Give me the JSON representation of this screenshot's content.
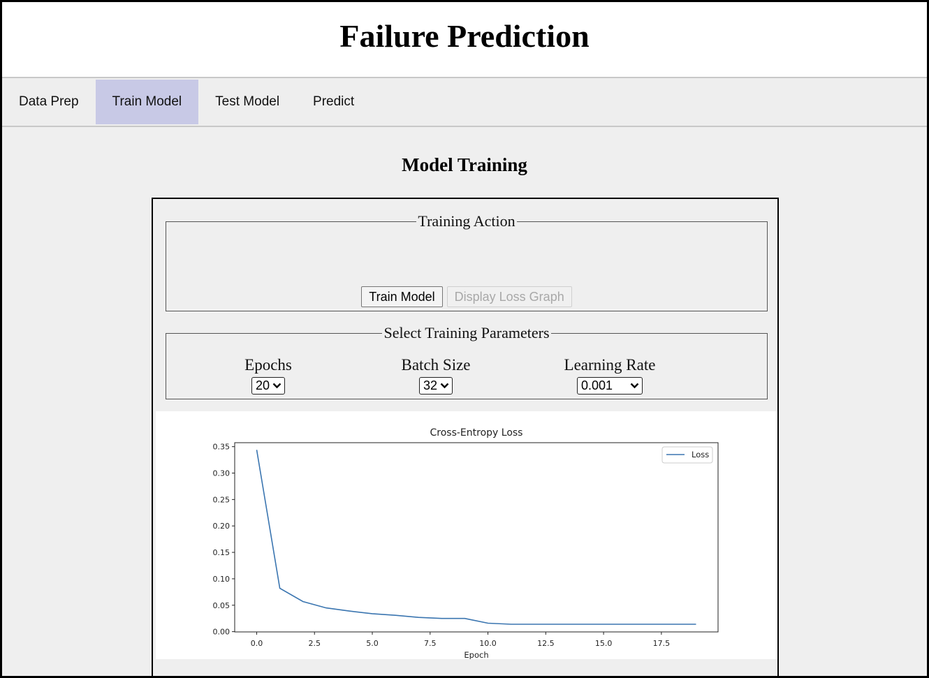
{
  "app": {
    "title": "Failure Prediction"
  },
  "tabs": [
    {
      "label": "Data Prep",
      "active": false
    },
    {
      "label": "Train Model",
      "active": true
    },
    {
      "label": "Test Model",
      "active": false
    },
    {
      "label": "Predict",
      "active": false
    }
  ],
  "section": {
    "title": "Model Training"
  },
  "training_action": {
    "legend": "Training Action",
    "train_button": "Train Model",
    "display_button": "Display Loss Graph"
  },
  "params": {
    "legend": "Select Training Parameters",
    "epochs": {
      "label": "Epochs",
      "value": "20"
    },
    "batch_size": {
      "label": "Batch Size",
      "value": "32"
    },
    "learning_rate": {
      "label": "Learning Rate",
      "value": "0.001"
    }
  },
  "colors": {
    "active_tab": "#c8c9e6",
    "series": "#3a75b0"
  },
  "chart_data": {
    "type": "line",
    "title": "Cross-Entropy Loss",
    "xlabel": "Epoch",
    "ylabel": "",
    "xlim": [
      -0.95,
      19.95
    ],
    "ylim": [
      -0.0005,
      0.3575
    ],
    "xticks": [
      0.0,
      2.5,
      5.0,
      7.5,
      10.0,
      12.5,
      15.0,
      17.5
    ],
    "xtick_labels": [
      "0.0",
      "2.5",
      "5.0",
      "7.5",
      "10.0",
      "12.5",
      "15.0",
      "17.5"
    ],
    "yticks": [
      0.0,
      0.05,
      0.1,
      0.15,
      0.2,
      0.25,
      0.3,
      0.35
    ],
    "ytick_labels": [
      "0.00",
      "0.05",
      "0.10",
      "0.15",
      "0.20",
      "0.25",
      "0.30",
      "0.35"
    ],
    "legend_position": "top-right",
    "grid": false,
    "series": [
      {
        "name": "Loss",
        "x": [
          0,
          1,
          2,
          3,
          4,
          5,
          6,
          7,
          8,
          9,
          10,
          11,
          12,
          13,
          14,
          15,
          16,
          17,
          18,
          19
        ],
        "values": [
          0.344,
          0.082,
          0.057,
          0.045,
          0.039,
          0.034,
          0.031,
          0.027,
          0.025,
          0.025,
          0.016,
          0.014,
          0.014,
          0.014,
          0.014,
          0.014,
          0.014,
          0.014,
          0.014,
          0.014
        ]
      }
    ]
  }
}
